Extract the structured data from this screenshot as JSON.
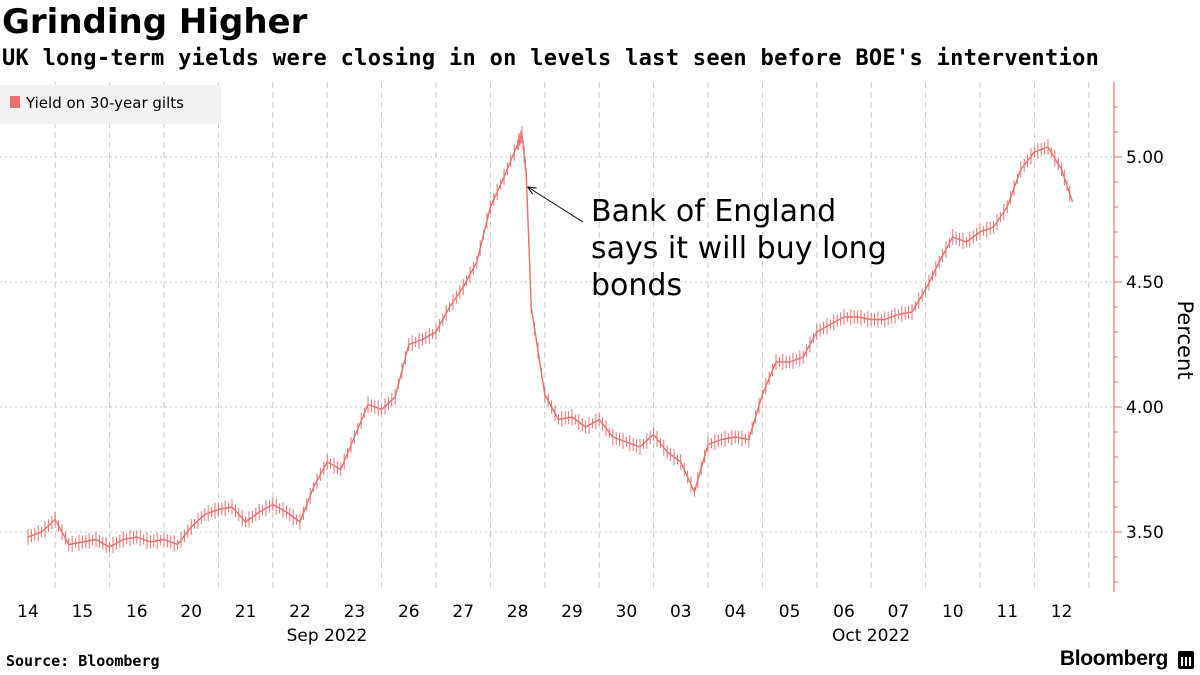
{
  "header": {
    "title": "Grinding Higher",
    "subtitle": "UK long-term yields were closing in on levels last seen before BOE's intervention"
  },
  "footer": {
    "source": "Source: Bloomberg",
    "brand": "Bloomberg"
  },
  "colors": {
    "series": "#e8706f",
    "grid": "#c8c8c8",
    "legend_bg": "#f2f2f2"
  },
  "chart_data": {
    "type": "line",
    "legend_position": "top-left",
    "grid": true,
    "ylabel": "Percent",
    "ylim": [
      3.25,
      5.3
    ],
    "y_axis_side": "right",
    "yticks": [
      3.5,
      4.0,
      4.5,
      5.0
    ],
    "ytick_labels": [
      "3.50",
      "4.00",
      "4.50",
      "5.00"
    ],
    "categories": [
      "14",
      "15",
      "16",
      "20",
      "21",
      "22",
      "23",
      "26",
      "27",
      "28",
      "29",
      "30",
      "03",
      "04",
      "05",
      "06",
      "07",
      "10",
      "11",
      "12"
    ],
    "month_labels": [
      {
        "label": "Sep 2022",
        "category": "22"
      },
      {
        "label": "Oct 2022",
        "category": "06"
      }
    ],
    "annotation": {
      "lines": [
        "Bank of England",
        "says it will buy long",
        "bonds"
      ],
      "category": "28"
    },
    "series": [
      {
        "name": "Yield on 30-year gilts",
        "color": "#e8706f",
        "points": [
          [
            0.0,
            3.48
          ],
          [
            0.25,
            3.5
          ],
          [
            0.5,
            3.55
          ],
          [
            0.75,
            3.45
          ],
          [
            1.0,
            3.46
          ],
          [
            1.25,
            3.47
          ],
          [
            1.5,
            3.44
          ],
          [
            1.75,
            3.47
          ],
          [
            2.0,
            3.48
          ],
          [
            2.25,
            3.46
          ],
          [
            2.5,
            3.47
          ],
          [
            2.75,
            3.45
          ],
          [
            3.0,
            3.52
          ],
          [
            3.25,
            3.57
          ],
          [
            3.5,
            3.59
          ],
          [
            3.75,
            3.6
          ],
          [
            4.0,
            3.54
          ],
          [
            4.25,
            3.58
          ],
          [
            4.5,
            3.61
          ],
          [
            4.75,
            3.58
          ],
          [
            5.0,
            3.54
          ],
          [
            5.25,
            3.68
          ],
          [
            5.5,
            3.78
          ],
          [
            5.75,
            3.75
          ],
          [
            6.0,
            3.88
          ],
          [
            6.25,
            4.01
          ],
          [
            6.5,
            3.99
          ],
          [
            6.75,
            4.04
          ],
          [
            7.0,
            4.25
          ],
          [
            7.25,
            4.27
          ],
          [
            7.5,
            4.3
          ],
          [
            7.75,
            4.4
          ],
          [
            8.0,
            4.48
          ],
          [
            8.25,
            4.58
          ],
          [
            8.5,
            4.8
          ],
          [
            8.75,
            4.92
          ],
          [
            9.0,
            5.05
          ],
          [
            9.08,
            5.09
          ],
          [
            9.16,
            4.93
          ],
          [
            9.25,
            4.4
          ],
          [
            9.5,
            4.05
          ],
          [
            9.75,
            3.95
          ],
          [
            10.0,
            3.96
          ],
          [
            10.25,
            3.92
          ],
          [
            10.5,
            3.95
          ],
          [
            10.75,
            3.88
          ],
          [
            11.0,
            3.86
          ],
          [
            11.25,
            3.84
          ],
          [
            11.5,
            3.89
          ],
          [
            11.75,
            3.82
          ],
          [
            12.0,
            3.78
          ],
          [
            12.25,
            3.66
          ],
          [
            12.5,
            3.85
          ],
          [
            12.75,
            3.87
          ],
          [
            13.0,
            3.88
          ],
          [
            13.25,
            3.87
          ],
          [
            13.5,
            4.05
          ],
          [
            13.75,
            4.18
          ],
          [
            14.0,
            4.18
          ],
          [
            14.25,
            4.2
          ],
          [
            14.5,
            4.3
          ],
          [
            14.75,
            4.33
          ],
          [
            15.0,
            4.36
          ],
          [
            15.25,
            4.36
          ],
          [
            15.5,
            4.35
          ],
          [
            15.75,
            4.35
          ],
          [
            16.0,
            4.37
          ],
          [
            16.25,
            4.38
          ],
          [
            16.5,
            4.47
          ],
          [
            16.75,
            4.58
          ],
          [
            17.0,
            4.68
          ],
          [
            17.25,
            4.66
          ],
          [
            17.5,
            4.7
          ],
          [
            17.75,
            4.72
          ],
          [
            18.0,
            4.8
          ],
          [
            18.25,
            4.95
          ],
          [
            18.5,
            5.02
          ],
          [
            18.75,
            5.04
          ],
          [
            19.0,
            4.95
          ],
          [
            19.2,
            4.82
          ]
        ]
      }
    ]
  }
}
